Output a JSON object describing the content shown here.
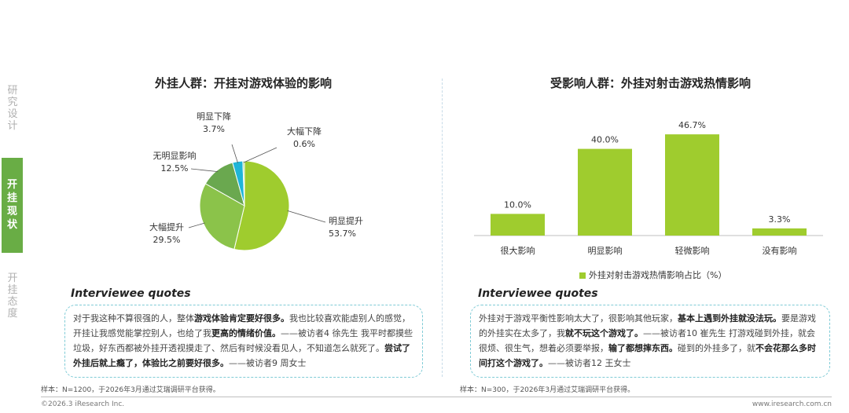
{
  "nav": {
    "item1": "研究设计",
    "item2": "开挂现状",
    "item3": "开挂态度"
  },
  "left": {
    "title": "外挂人群：开挂对游戏体验的影响",
    "quote_title": "Interviewee quotes",
    "quote": [
      {
        "t": "对于我这种不算很强的人，整体",
        "b": false
      },
      {
        "t": "游戏体验肯定要好很多。",
        "b": true
      },
      {
        "t": "我也比较喜欢能虐别人的感觉，开挂让我感觉能掌控别人，也给了我",
        "b": false
      },
      {
        "t": "更高的情绪价值。",
        "b": true
      },
      {
        "t": "——被访者4 徐先生 我平时都摸些垃圾，好东西都被外挂开透视摸走了、然后有时候没看见人，不知道怎么就死了。",
        "b": false
      },
      {
        "t": "尝试了外挂后就上瘾了，体验比之前要好很多。",
        "b": true
      },
      {
        "t": "——被访者9 周女士",
        "b": false
      }
    ],
    "note": "样本：N=1200，于2026年3月通过艾瑞调研平台获得。"
  },
  "right": {
    "title": "受影响人群：外挂对射击游戏热情影响",
    "legend": "外挂对射击游戏热情影响占比（%）",
    "quote_title": "Interviewee quotes",
    "quote": [
      {
        "t": "外挂对于游戏平衡性影响太大了，很影响其他玩家，",
        "b": false
      },
      {
        "t": "基本上遇到外挂就没法玩。",
        "b": true
      },
      {
        "t": "要是游戏的外挂实在太多了，我",
        "b": false
      },
      {
        "t": "就不玩这个游戏了。",
        "b": true
      },
      {
        "t": "——被访者10 崔先生 打游戏碰到外挂，就会很烦、很生气，想着必须要举报，",
        "b": false
      },
      {
        "t": "输了都想摔东西。",
        "b": true
      },
      {
        "t": "碰到的外挂多了，就",
        "b": false
      },
      {
        "t": "不会花那么多时间打这个游戏了。",
        "b": true
      },
      {
        "t": "——被访者12 王女士",
        "b": false
      }
    ],
    "note": "样本：N=300，于2026年3月通过艾瑞调研平台获得。"
  },
  "footer": {
    "copyright": "©2026.3 iResearch Inc.",
    "site": "www.iresearch.com.cn"
  },
  "chart_data": [
    {
      "type": "pie",
      "title": "外挂人群：开挂对游戏体验的影响",
      "slices": [
        {
          "label": "明显提升",
          "value": 53.7,
          "display": "53.7%",
          "color": "#9fcc2e"
        },
        {
          "label": "大幅提升",
          "value": 29.5,
          "display": "29.5%",
          "color": "#8bc34a"
        },
        {
          "label": "无明显影响",
          "value": 12.5,
          "display": "12.5%",
          "color": "#6aa84f"
        },
        {
          "label": "明显下降",
          "value": 3.7,
          "display": "3.7%",
          "color": "#1fb5d8"
        },
        {
          "label": "大幅下降",
          "value": 0.6,
          "display": "0.6%",
          "color": "#a8d08d"
        }
      ]
    },
    {
      "type": "bar",
      "title": "受影响人群：外挂对射击游戏热情影响",
      "categories": [
        "很大影响",
        "明显影响",
        "轻微影响",
        "没有影响"
      ],
      "series": [
        {
          "name": "外挂对射击游戏热情影响占比（%）",
          "values": [
            10.0,
            40.0,
            46.7,
            3.3
          ],
          "display": [
            "10.0%",
            "40.0%",
            "46.7%",
            "3.3%"
          ],
          "color": "#9fcc2e"
        }
      ],
      "ylim": [
        0,
        50
      ]
    }
  ]
}
